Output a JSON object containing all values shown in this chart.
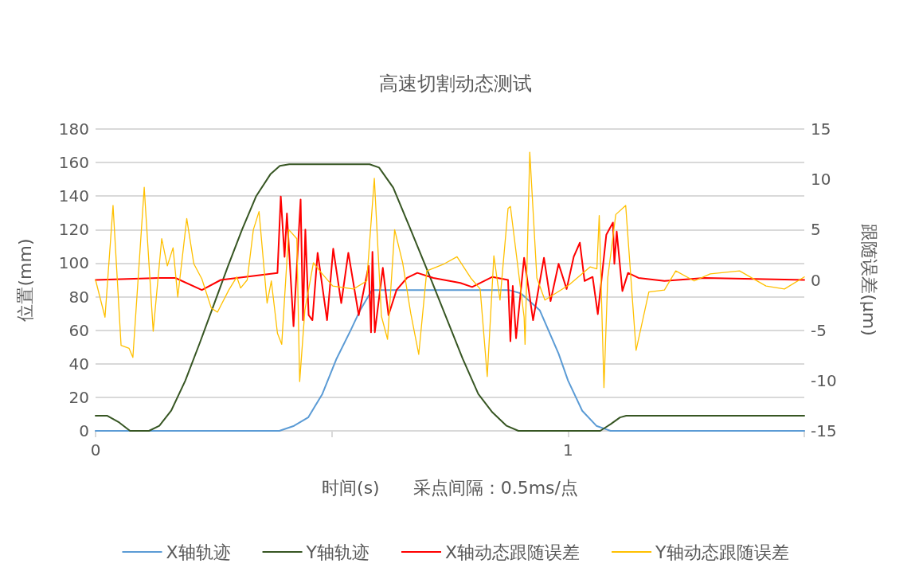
{
  "chart_data": {
    "type": "line",
    "title": "高速切割动态测试",
    "xlabel": "时间(s)      采点间隔：0.5ms/点",
    "ylabel": "位置(mm)",
    "y2label": "跟随误差(μm)",
    "xlim": [
      0,
      1.5
    ],
    "xticks": [
      0,
      {
        "value": 0.5,
        "label": null
      },
      1,
      {
        "value": 1.5,
        "label": null
      }
    ],
    "ylim": [
      0,
      180
    ],
    "yticks": [
      0,
      20,
      40,
      60,
      80,
      100,
      120,
      140,
      160,
      180
    ],
    "y2lim": [
      -15,
      15
    ],
    "y2ticks": [
      -15,
      -10,
      -5,
      0,
      5,
      10,
      15
    ],
    "grid": "y",
    "legend": "bottom",
    "series": [
      {
        "name": "X轴轨迹",
        "color": "#5b9bd5",
        "x": [
          0,
          0.389,
          0.42,
          0.45,
          0.48,
          0.51,
          0.54,
          0.56,
          0.585,
          0.875,
          0.9,
          0.94,
          0.98,
          1.0,
          1.03,
          1.06,
          1.09,
          1.5
        ],
        "values": [
          0,
          0,
          3,
          8,
          22,
          43,
          60,
          72,
          84,
          84,
          82,
          72,
          46,
          30,
          12,
          3,
          0,
          0
        ]
      },
      {
        "name": "Y轴轨迹",
        "color": "#375623",
        "x": [
          0,
          0.025,
          0.05,
          0.073,
          0.113,
          0.135,
          0.16,
          0.19,
          0.22,
          0.25,
          0.28,
          0.31,
          0.34,
          0.37,
          0.39,
          0.41,
          0.58,
          0.6,
          0.63,
          0.664,
          0.709,
          0.777,
          0.81,
          0.84,
          0.87,
          0.895,
          1.068,
          1.09,
          1.11,
          1.123,
          1.5
        ],
        "values": [
          9,
          9,
          5,
          0,
          0,
          3,
          12,
          30,
          52,
          75,
          98,
          120,
          140,
          153,
          158,
          159,
          159,
          157,
          145,
          122,
          91,
          43,
          22,
          11,
          3,
          0,
          0,
          4,
          8,
          9,
          9
        ]
      },
      {
        "name": "X轴动态跟随误差",
        "color": "#ff0000",
        "axis": "y2",
        "x": [
          0,
          0.135,
          0.169,
          0.225,
          0.265,
          0.385,
          0.392,
          0.4,
          0.405,
          0.419,
          0.434,
          0.439,
          0.444,
          0.451,
          0.459,
          0.47,
          0.49,
          0.503,
          0.52,
          0.535,
          0.557,
          0.578,
          0.583,
          0.586,
          0.591,
          0.608,
          0.62,
          0.637,
          0.659,
          0.681,
          0.715,
          0.772,
          0.797,
          0.84,
          0.873,
          0.878,
          0.883,
          0.89,
          0.907,
          0.926,
          0.949,
          0.963,
          0.98,
          0.997,
          1.012,
          1.025,
          1.035,
          1.052,
          1.063,
          1.081,
          1.095,
          1.098,
          1.103,
          1.115,
          1.127,
          1.149,
          1.204,
          1.289,
          1.5
        ],
        "values": [
          0,
          0.2,
          0.2,
          -1.0,
          0,
          0.7,
          8.3,
          2.3,
          6.6,
          -4.6,
          8.0,
          -4.0,
          5.0,
          -3.5,
          -4.0,
          2.7,
          -4.0,
          3.1,
          -2.3,
          2.7,
          -3.5,
          1.4,
          -5.2,
          2.8,
          -5.2,
          1.2,
          -3.5,
          -1.0,
          0.2,
          0.7,
          0.2,
          -0.3,
          -0.7,
          0.3,
          0,
          -6.1,
          -0.6,
          -5.8,
          2.2,
          -4.0,
          2.2,
          -2.1,
          1.6,
          -0.9,
          2.3,
          3.7,
          -0.1,
          0.3,
          -3.4,
          4.5,
          5.7,
          1.6,
          4.8,
          -1.1,
          0.7,
          0.2,
          -0.1,
          0.2,
          0
        ]
      },
      {
        "name": "Y轴动态跟随误差",
        "color": "#ffc000",
        "axis": "y2",
        "x": [
          0,
          0.02,
          0.037,
          0.054,
          0.071,
          0.079,
          0.103,
          0.122,
          0.14,
          0.152,
          0.164,
          0.174,
          0.193,
          0.208,
          0.225,
          0.245,
          0.258,
          0.282,
          0.299,
          0.307,
          0.321,
          0.334,
          0.346,
          0.363,
          0.372,
          0.385,
          0.394,
          0.409,
          0.426,
          0.432,
          0.443,
          0.461,
          0.478,
          0.502,
          0.546,
          0.574,
          0.59,
          0.605,
          0.618,
          0.633,
          0.65,
          0.667,
          0.684,
          0.701,
          0.738,
          0.765,
          0.794,
          0.814,
          0.829,
          0.843,
          0.856,
          0.873,
          0.878,
          0.907,
          0.909,
          0.919,
          0.934,
          0.951,
          1.002,
          1.047,
          1.061,
          1.066,
          1.076,
          1.084,
          1.101,
          1.122,
          1.144,
          1.171,
          1.204,
          1.228,
          1.267,
          1.301,
          1.363,
          1.419,
          1.458,
          1.5
        ],
        "values": [
          0,
          -3.7,
          7.4,
          -6.5,
          -6.8,
          -7.7,
          9.2,
          -5.1,
          4.1,
          1.4,
          3.2,
          -1.7,
          6.1,
          1.6,
          0.1,
          -2.8,
          -3.2,
          -1.0,
          0.3,
          -0.8,
          0,
          5.0,
          6.8,
          -2.3,
          -0.1,
          -5.3,
          -6.4,
          5.0,
          4.1,
          -10.1,
          -3.0,
          1.7,
          0.7,
          -0.6,
          -0.9,
          -0.1,
          10.1,
          -3.6,
          -5.9,
          5.0,
          1.7,
          -3.3,
          -7.4,
          0.9,
          1.6,
          2.3,
          0.2,
          -0.9,
          -9.6,
          2.4,
          -2.0,
          7.1,
          7.3,
          -3.7,
          -6.4,
          12.7,
          0.2,
          -2.0,
          -0.5,
          1.3,
          1.1,
          6.4,
          -10.7,
          0.2,
          6.5,
          7.4,
          -7.0,
          -1.2,
          -1.0,
          0.9,
          -0.1,
          0.6,
          0.9,
          -0.6,
          -0.9,
          0.3
        ]
      }
    ]
  }
}
